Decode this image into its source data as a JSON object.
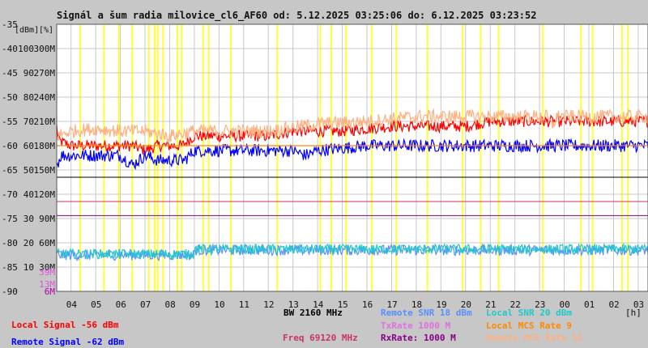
{
  "title": "Signál a šum radia milovice_cl6_AF60 od: 5.12.2025 03:25:06 do: 6.12.2025 03:23:52",
  "colors": {
    "background": "#c7c7c7",
    "plot_background": "#ffffff",
    "grid": "#c8c8c8",
    "highlight": "#ffff33",
    "local_signal": "#ff0000",
    "remote_signal": "#0000ff",
    "remote_snr": "#5a8fff",
    "local_snr": "#22c9c9",
    "local_mcs": "#ff8800",
    "remote_mcs": "#ffb080",
    "txrate": "#e070e0",
    "rxrate": "#880088",
    "freq": "#cc3366",
    "bw": "#000000"
  },
  "chart_data": {
    "type": "line",
    "title": "Signál a šum radia milovice_cl6_AF60 od: 5.12.2025 03:25:06 do: 6.12.2025 03:23:52",
    "x_unit": "[h]",
    "x_ticks": [
      "04",
      "05",
      "06",
      "07",
      "08",
      "09",
      "10",
      "11",
      "12",
      "13",
      "14",
      "15",
      "16",
      "17",
      "18",
      "19",
      "20",
      "21",
      "22",
      "23",
      "00",
      "01",
      "02",
      "03"
    ],
    "x_range_hours": [
      3.4183,
      27.3978
    ],
    "y_units": [
      "[dBm]",
      "[%]"
    ],
    "y_range_dbm": [
      -90,
      -35
    ],
    "y_ticks": [
      {
        "dbm": -35,
        "b": "",
        "c": ""
      },
      {
        "dbm": -40,
        "b": "100",
        "c": "300M"
      },
      {
        "dbm": -45,
        "b": "90",
        "c": "270M"
      },
      {
        "dbm": -50,
        "b": "80",
        "c": "240M"
      },
      {
        "dbm": -55,
        "b": "70",
        "c": "210M"
      },
      {
        "dbm": -60,
        "b": "60",
        "c": "180M"
      },
      {
        "dbm": -65,
        "b": "50",
        "c": "150M"
      },
      {
        "dbm": -70,
        "b": "40",
        "c": "120M"
      },
      {
        "dbm": -75,
        "b": "30",
        "c": "90M"
      },
      {
        "dbm": -80,
        "b": "20",
        "c": "60M"
      },
      {
        "dbm": -85,
        "b": "10",
        "c": "30M"
      },
      {
        "dbm": -90,
        "b": "",
        "c": ""
      }
    ],
    "mcs_ticks": [
      {
        "label": "39M",
        "dbm": -86,
        "color": "#dd55dd"
      },
      {
        "label": "13M",
        "dbm": -88.5,
        "color": "#dd55dd"
      },
      {
        "label": "6M",
        "dbm": -90,
        "color": "#aa00aa"
      }
    ],
    "highlight_bands_hours": [
      [
        4.34,
        4.4
      ],
      [
        5.3,
        5.36
      ],
      [
        5.9,
        5.96
      ],
      [
        6.45,
        6.51
      ],
      [
        7.12,
        7.18
      ],
      [
        7.36,
        7.42
      ],
      [
        7.48,
        7.54
      ],
      [
        7.7,
        7.76
      ],
      [
        8.28,
        8.34
      ],
      [
        8.45,
        8.51
      ],
      [
        9.32,
        9.38
      ],
      [
        9.55,
        9.61
      ],
      [
        10.45,
        10.51
      ],
      [
        12.33,
        12.39
      ],
      [
        14.08,
        14.14
      ],
      [
        14.52,
        14.58
      ],
      [
        15.12,
        15.18
      ],
      [
        16.16,
        16.22
      ],
      [
        17.16,
        17.22
      ],
      [
        18.42,
        18.48
      ],
      [
        19.85,
        19.91
      ],
      [
        20.58,
        20.64
      ],
      [
        21.31,
        21.37
      ],
      [
        23.1,
        23.16
      ],
      [
        24.65,
        24.71
      ],
      [
        25.12,
        25.18
      ],
      [
        26.31,
        26.37
      ],
      [
        26.55,
        26.61
      ]
    ],
    "reference_lines": [
      {
        "name": "BW",
        "value": -66.5,
        "color": "#000000"
      },
      {
        "name": "Freq",
        "value": -71.5,
        "color": "#cc3366"
      },
      {
        "name": "RxRate",
        "value": -74.4,
        "color": "#880088"
      },
      {
        "name": "TxRate",
        "value": -60.0,
        "color": "#e070e0"
      }
    ],
    "series": [
      {
        "name": "Local Signal",
        "color": "#ff0000",
        "points": [
          [
            3.42,
            -56
          ],
          [
            3.5,
            -59
          ],
          [
            4.0,
            -60
          ],
          [
            4.5,
            -60
          ],
          [
            5.0,
            -60
          ],
          [
            5.5,
            -60
          ],
          [
            6.0,
            -60
          ],
          [
            6.5,
            -60
          ],
          [
            7.0,
            -61
          ],
          [
            7.5,
            -60
          ],
          [
            8.0,
            -60
          ],
          [
            8.5,
            -60
          ],
          [
            9.0,
            -58
          ],
          [
            10.0,
            -58
          ],
          [
            11.0,
            -58
          ],
          [
            12.0,
            -58
          ],
          [
            13.0,
            -57
          ],
          [
            14.0,
            -57
          ],
          [
            15.0,
            -57
          ],
          [
            16.0,
            -56.5
          ],
          [
            17.0,
            -56
          ],
          [
            18.0,
            -56
          ],
          [
            19.0,
            -56
          ],
          [
            20.0,
            -56
          ],
          [
            21.0,
            -55
          ],
          [
            22.0,
            -55
          ],
          [
            23.0,
            -55
          ],
          [
            23.5,
            -55
          ],
          [
            24.0,
            -55
          ],
          [
            25.0,
            -55
          ],
          [
            26.0,
            -55
          ],
          [
            27.0,
            -55
          ],
          [
            27.39,
            -55
          ]
        ],
        "noise": 1.2
      },
      {
        "name": "Remote Signal",
        "color": "#0000ff",
        "points": [
          [
            3.42,
            -64
          ],
          [
            3.6,
            -62
          ],
          [
            4.0,
            -62
          ],
          [
            5.0,
            -62
          ],
          [
            6.0,
            -62
          ],
          [
            6.5,
            -64
          ],
          [
            7.0,
            -62
          ],
          [
            7.5,
            -63
          ],
          [
            8.0,
            -63
          ],
          [
            8.6,
            -63
          ],
          [
            9.0,
            -61
          ],
          [
            10.0,
            -61
          ],
          [
            11.0,
            -61
          ],
          [
            12.0,
            -61
          ],
          [
            13.0,
            -61
          ],
          [
            13.5,
            -62
          ],
          [
            14.0,
            -61
          ],
          [
            15.0,
            -60.5
          ],
          [
            16.0,
            -60
          ],
          [
            17.0,
            -60
          ],
          [
            18.0,
            -60
          ],
          [
            19.0,
            -60
          ],
          [
            20.0,
            -60
          ],
          [
            21.0,
            -60
          ],
          [
            22.0,
            -60
          ],
          [
            23.0,
            -60
          ],
          [
            23.5,
            -60
          ],
          [
            24.0,
            -60
          ],
          [
            25.0,
            -60
          ],
          [
            26.0,
            -60
          ],
          [
            27.0,
            -60
          ],
          [
            27.39,
            -60
          ]
        ],
        "noise": 1.3
      },
      {
        "name": "Remote SNR",
        "color": "#5a8fff",
        "points": [
          [
            3.42,
            -82.5
          ],
          [
            9.0,
            -82.5
          ],
          [
            9.0,
            -81.5
          ],
          [
            27.39,
            -81.5
          ]
        ],
        "noise": 1.1
      },
      {
        "name": "Local SNR",
        "color": "#22c9c9",
        "points": [
          [
            3.42,
            -82.3
          ],
          [
            9.0,
            -82.3
          ],
          [
            9.0,
            -81.3
          ],
          [
            27.39,
            -81.3
          ]
        ],
        "noise": 1.0
      },
      {
        "name": "Local MCS Rate",
        "color": "#ff8800",
        "points": [
          [
            3.42,
            -60
          ],
          [
            27.39,
            -60
          ]
        ],
        "noise": 0.0
      },
      {
        "name": "Remote MCS Rate",
        "color": "#ffb080",
        "points": [
          [
            3.42,
            -58
          ],
          [
            4.0,
            -57
          ],
          [
            5.0,
            -56.5
          ],
          [
            6.0,
            -57
          ],
          [
            7.0,
            -57
          ],
          [
            8.0,
            -58
          ],
          [
            9.0,
            -57
          ],
          [
            12.0,
            -57
          ],
          [
            14.0,
            -55.5
          ],
          [
            16.0,
            -55
          ],
          [
            18.0,
            -54
          ],
          [
            22.0,
            -54
          ],
          [
            23.3,
            -54
          ],
          [
            23.5,
            -56
          ],
          [
            23.7,
            -54
          ],
          [
            27.39,
            -54
          ]
        ],
        "noise": 1.4
      }
    ]
  },
  "legend": {
    "local_signal": "Local Signal -56 dBm",
    "remote_signal": "Remote Signal -62 dBm",
    "bw": "BW 2160 MHz",
    "freq": "Freq 69120 MHz",
    "remote_snr": "Remote SNR 18 dBm",
    "txrate": "TxRate 1000 M",
    "rxrate": "RxRate: 1000 M",
    "local_snr": "Local SNR 20 dBm",
    "local_mcs": "Local MCS Rate 9",
    "remote_mcs": "Remote MCS Rate 12"
  }
}
